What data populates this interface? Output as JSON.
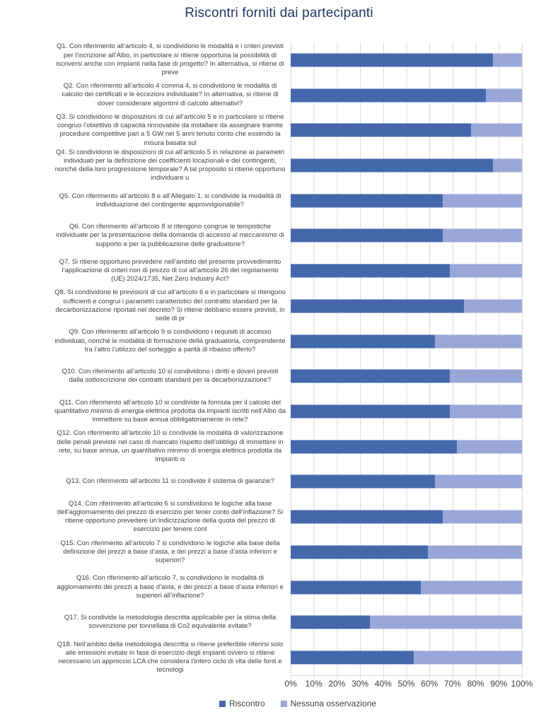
{
  "title": "Riscontri forniti dai partecipanti",
  "chart_data": {
    "type": "bar",
    "orientation": "horizontal",
    "stacked": true,
    "unit": "%",
    "xlim": [
      0,
      100
    ],
    "grid": "vertical",
    "legend_position": "bottom",
    "x_ticks": [
      "0%",
      "10%",
      "20%",
      "30%",
      "40%",
      "50%",
      "60%",
      "70%",
      "80%",
      "90%",
      "100%"
    ],
    "categories": [
      "Q1.  Con riferimento all’articolo 4, si condividono le modalità e i criteri previsti per l’iscrizione all’Albo, in particolare si ritiene opportuna la possibilità di iscriversi anche con impianti nella fase di progetto? In alternativa, si ritiene di preve",
      "Q2.  Con riferimento all’articolo 4 comma 4, si condividono le modalità di calcolo dei certificati e le eccezioni individuate? In alternativa, si ritiene di dover considerare algoritmi di calcolo alternativi?",
      "Q3.  Si condividono le disposizioni di cui all’articolo 5 e in particolare si ritiene congruo l’obiettivo di capacità rinnovabile da installare da assegnare tramite procedure competitive pari a 5 GW nei 5 anni tenuto conto che essendo la misura basata sul",
      "Q4.  Si condividono le disposizioni di cui all’articolo 5 in relazione ai parametri individuati per la definizione dei coefficienti locazionali e dei contingenti, nonché della loro progressione temporale? A tal proposito si ritiene opportuno individuare u",
      "Q5.  Con riferimento all’articolo 8 e all’Allegato 1, si condivide la modalità di individuazione del contingente approvvigionabile?",
      "Q6.  Con riferimento all’articolo 8 si ritengono congrue le tempistiche individuate per la presentazione della domanda di accesso al meccanismo di supporto e per la pubblicazione delle graduatorie?",
      "Q7.  Si ritiene opportuno prevedere nell’ambito del presente provvedimento l’applicazione di criteri non di prezzo di cui all’articolo 26 del regolamento (UE) 2024/1735, Net Zero Industry Act?",
      "Q8.  Si condividono le previsioni di cui all’articolo 6 e in particolare si ritengono sufficienti e congrui i parametri caratteristici del contratto standard per la decarbonizzazione riportati nel decreto? Si ritiene debbano essere previsti, in sede di pr",
      "Q9.  Con riferimento all’articolo 9 si condividono i requisiti di accesso individuati, nonché le modalità di formazione della graduatoria, comprendente tra l’altro l’utilizzo del sorteggio a parità di ribasso offerto?",
      "Q10.  Con riferimento all’articolo 10 si condividono i diritti e doveri previsti dalla sottoscrizione dei contratti standard per la decarbonizzazione?",
      "Q11.  Con riferimento all’articolo 10 si condivide la formula per il calcolo del quantitativo minimo di energia elettrica prodotta da impianti iscritti nell’Albo da immettere su base annua obbligatoriamente in rete?",
      "Q12.  Con riferimento all’articolo 10 si condivide la modalità di valorizzazione delle penali previste nel caso di mancato rispetto dell’obbligo di immettere in rete, su base annua, un quantitativo minimo di energia elettrica prodotta da impianti is",
      "Q13.  Con riferimento all’articolo 11 si condivide il sistema di garanzie?",
      "Q14.  Con riferimento all’articolo 6 si condividono le logiche alla base dell’aggiornamento del prezzo di esercizio per tener conto dell’inflazione? Si ritiene opportuno prevedere un’indicizzazione della quota del prezzo di esercizio per tenere cont",
      "Q15.  Con riferimento all’articolo 7 si condividono le logiche alla base della definizione dei prezzi a base d’asta, e dei prezzi a base d’asta inferiori e superiori?",
      "Q16.  Con riferimento all’articolo 7, si condividono le modalità di aggiornamento dei prezzi a base d’asta, e dei prezzi a base d’asta inferiori e superiori all’inflazione?",
      "Q17.  Si condivide la metodologia descritta applicabile per la stima della sovvenzione per tonnellata di Co2 equivalente evitate?",
      "Q18.  Nell’ambito della metodologia descritta si ritiene preferibile riferirsi solo alle emissioni evitate in fase di esercizio degli impianti ovvero si ritiene necessario un approccio LCA che considera l’intero ciclo di vita delle fonti e tecnologi"
    ],
    "series": [
      {
        "name": "Riscontro",
        "color": "#4568AD",
        "values": [
          87.5,
          84.4,
          78.1,
          87.5,
          65.6,
          65.6,
          68.8,
          75.0,
          62.5,
          68.8,
          68.8,
          71.9,
          62.5,
          65.6,
          59.4,
          56.3,
          34.4,
          53.1
        ]
      },
      {
        "name": "Nessuna osservazione",
        "color": "#99A7D8",
        "values": [
          12.5,
          15.6,
          21.9,
          12.5,
          34.4,
          34.4,
          31.2,
          25.0,
          37.5,
          31.2,
          31.2,
          28.1,
          37.5,
          34.4,
          40.6,
          43.7,
          65.6,
          46.9
        ]
      }
    ],
    "colors": {
      "gridline": "#D9D9D9",
      "axis_text": "#404040",
      "category_text": "#3F3F3F",
      "title_text": "#1F3864"
    }
  }
}
